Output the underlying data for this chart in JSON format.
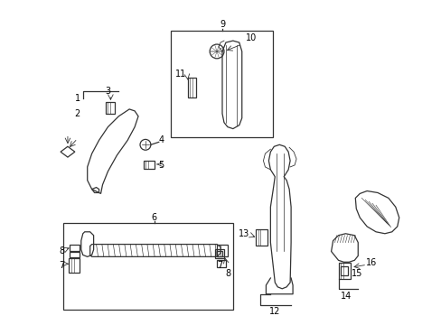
{
  "background_color": "#ffffff",
  "line_color": "#333333",
  "text_color": "#000000",
  "figsize": [
    4.89,
    3.6
  ],
  "dpi": 100
}
